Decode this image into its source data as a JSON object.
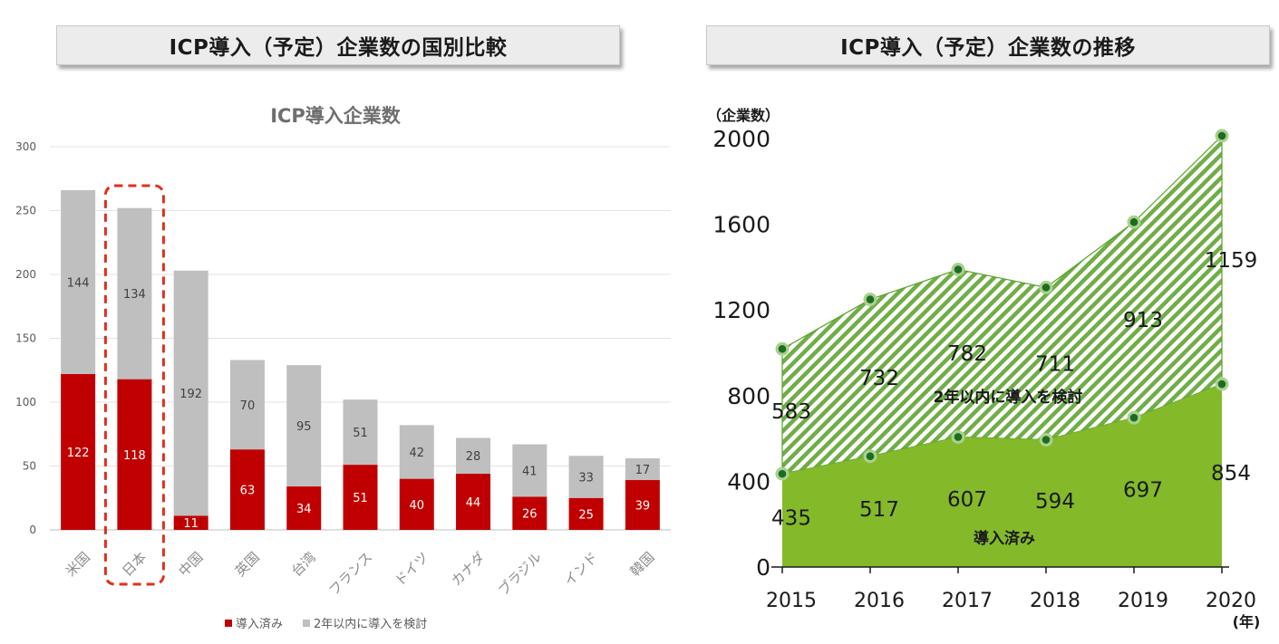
{
  "left_header": "ICP導入（予定）企業数の国別比較",
  "right_header": "ICP導入（予定）企業数の推移",
  "chart_data": [
    {
      "type": "bar",
      "stacked": true,
      "title": "ICP導入企業数",
      "categories": [
        "米国",
        "日本",
        "中国",
        "英国",
        "台湾",
        "フランス",
        "ドイツ",
        "カナダ",
        "ブラジル",
        "インド",
        "韓国"
      ],
      "series": [
        {
          "name": "導入済み",
          "color": "#c00000",
          "values": [
            122,
            118,
            11,
            63,
            34,
            51,
            40,
            44,
            26,
            25,
            39
          ]
        },
        {
          "name": "2年以内に導入を検討",
          "color": "#bfbfbf",
          "values": [
            144,
            134,
            192,
            70,
            95,
            51,
            42,
            28,
            41,
            33,
            17
          ]
        }
      ],
      "yticks": [
        "300",
        "250",
        "200",
        "150",
        "100",
        "50",
        "0"
      ],
      "ylim": [
        0,
        300
      ],
      "highlight_category": "日本",
      "legend_position": "bottom",
      "grid": true
    },
    {
      "type": "area",
      "stacked": true,
      "ylabel": "（企業数）",
      "xlabel": "(年)",
      "x": [
        "2015",
        "2016",
        "2017",
        "2018",
        "2019",
        "2020"
      ],
      "yticks": [
        "2000",
        "1600",
        "1200",
        "800",
        "400",
        "0"
      ],
      "ylim": [
        0,
        2000
      ],
      "series": [
        {
          "name": "導入済み",
          "color": "#84b92a",
          "values": [
            435,
            517,
            607,
            594,
            697,
            854
          ]
        },
        {
          "name": "2年以内に導入を検討",
          "color": "#70ad47",
          "pattern": "diagonal-hatch",
          "values": [
            583,
            732,
            782,
            711,
            913,
            1159
          ]
        }
      ]
    }
  ]
}
